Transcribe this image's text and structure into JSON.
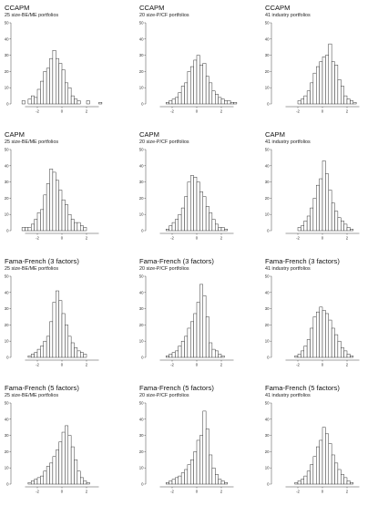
{
  "bar_color": "#ffffff",
  "bar_stroke": "#222222",
  "axis_color": "#444444",
  "chart_data": [
    {
      "type": "bar",
      "title": "CCAPM",
      "subtitle": "25 size-BE/ME portfolios",
      "ylim": [
        0,
        50
      ],
      "y_ticks": [
        0,
        10,
        20,
        30,
        40,
        50
      ],
      "xlim": [
        -4,
        4
      ],
      "x_ticks": [
        -2,
        0,
        2
      ],
      "bin_width": 0.25,
      "x_start": -3.5,
      "values": [
        0,
        2,
        0,
        3,
        5,
        4,
        9,
        14,
        20,
        22,
        28,
        33,
        28,
        25,
        21,
        13,
        10,
        5,
        3,
        2,
        0,
        0,
        2,
        0,
        0,
        0,
        1,
        0,
        0
      ]
    },
    {
      "type": "bar",
      "title": "CCAPM",
      "subtitle": "20 size-P/CF portfolios",
      "ylim": [
        0,
        50
      ],
      "y_ticks": [
        0,
        10,
        20,
        30,
        40,
        50
      ],
      "xlim": [
        -4,
        4
      ],
      "x_ticks": [
        -2,
        0,
        2
      ],
      "bin_width": 0.25,
      "x_start": -3.5,
      "values": [
        0,
        0,
        0,
        0,
        1,
        2,
        3,
        4,
        7,
        11,
        13,
        20,
        23,
        27,
        30,
        24,
        25,
        17,
        13,
        8,
        6,
        4,
        3,
        2,
        2,
        1,
        1,
        0,
        0
      ]
    },
    {
      "type": "bar",
      "title": "CCAPM",
      "subtitle": "41 industry portfolios",
      "ylim": [
        0,
        50
      ],
      "y_ticks": [
        0,
        10,
        20,
        30,
        40,
        50
      ],
      "xlim": [
        -4,
        4
      ],
      "x_ticks": [
        -2,
        0,
        2
      ],
      "bin_width": 0.25,
      "x_start": -3.5,
      "values": [
        0,
        0,
        0,
        0,
        0,
        0,
        2,
        3,
        5,
        8,
        13,
        19,
        23,
        26,
        29,
        30,
        37,
        26,
        24,
        15,
        11,
        5,
        3,
        2,
        1,
        0,
        0,
        0,
        0
      ]
    },
    {
      "type": "bar",
      "title": "CAPM",
      "subtitle": "25 size-BE/ME portfolios",
      "ylim": [
        0,
        50
      ],
      "y_ticks": [
        0,
        10,
        20,
        30,
        40,
        50
      ],
      "xlim": [
        -4,
        4
      ],
      "x_ticks": [
        -2,
        0,
        2
      ],
      "bin_width": 0.25,
      "x_start": -3.5,
      "values": [
        0,
        2,
        2,
        2,
        4,
        7,
        11,
        13,
        22,
        29,
        38,
        36,
        31,
        25,
        19,
        16,
        10,
        7,
        5,
        5,
        3,
        2,
        0,
        0,
        0,
        0,
        0,
        0,
        0
      ]
    },
    {
      "type": "bar",
      "title": "CAPM",
      "subtitle": "20 size-P/CF portfolios",
      "ylim": [
        0,
        50
      ],
      "y_ticks": [
        0,
        10,
        20,
        30,
        40,
        50
      ],
      "xlim": [
        -4,
        4
      ],
      "x_ticks": [
        -2,
        0,
        2
      ],
      "bin_width": 0.25,
      "x_start": -3.5,
      "values": [
        0,
        0,
        0,
        0,
        1,
        3,
        5,
        7,
        10,
        14,
        21,
        30,
        34,
        33,
        30,
        24,
        21,
        15,
        11,
        7,
        4,
        2,
        2,
        1,
        0,
        0,
        0,
        0,
        0
      ]
    },
    {
      "type": "bar",
      "title": "CAPM",
      "subtitle": "41 industry portfolios",
      "ylim": [
        0,
        50
      ],
      "y_ticks": [
        0,
        10,
        20,
        30,
        40,
        50
      ],
      "xlim": [
        -4,
        4
      ],
      "x_ticks": [
        -2,
        0,
        2
      ],
      "bin_width": 0.25,
      "x_start": -3.5,
      "values": [
        0,
        0,
        0,
        0,
        0,
        0,
        2,
        3,
        6,
        9,
        14,
        20,
        28,
        32,
        43,
        35,
        25,
        17,
        12,
        8,
        6,
        4,
        2,
        1,
        0,
        0,
        0,
        0,
        0
      ]
    },
    {
      "type": "bar",
      "title": "Fama-French (3 factors)",
      "subtitle": "25 size-BE/ME portfolios",
      "ylim": [
        0,
        50
      ],
      "y_ticks": [
        0,
        10,
        20,
        30,
        40,
        50
      ],
      "xlim": [
        -4,
        4
      ],
      "x_ticks": [
        -2,
        0,
        2
      ],
      "bin_width": 0.25,
      "x_start": -3.5,
      "values": [
        0,
        0,
        0,
        1,
        2,
        3,
        5,
        7,
        10,
        13,
        22,
        34,
        41,
        35,
        27,
        20,
        13,
        9,
        6,
        4,
        3,
        2,
        0,
        0,
        0,
        0,
        0,
        0,
        0
      ]
    },
    {
      "type": "bar",
      "title": "Fama-French (3 factors)",
      "subtitle": "20 size-P/CF portfolios",
      "ylim": [
        0,
        50
      ],
      "y_ticks": [
        0,
        10,
        20,
        30,
        40,
        50
      ],
      "xlim": [
        -4,
        4
      ],
      "x_ticks": [
        -2,
        0,
        2
      ],
      "bin_width": 0.25,
      "x_start": -3.5,
      "values": [
        0,
        0,
        0,
        0,
        1,
        2,
        3,
        4,
        7,
        10,
        13,
        18,
        22,
        27,
        34,
        45,
        38,
        25,
        9,
        5,
        4,
        2,
        1,
        0,
        0,
        0,
        0,
        0,
        0
      ]
    },
    {
      "type": "bar",
      "title": "Fama-French (3 factors)",
      "subtitle": "41 industry portfolios",
      "ylim": [
        0,
        50
      ],
      "y_ticks": [
        0,
        10,
        20,
        30,
        40,
        50
      ],
      "xlim": [
        -4,
        4
      ],
      "x_ticks": [
        -2,
        0,
        2
      ],
      "bin_width": 0.25,
      "x_start": -3.5,
      "values": [
        0,
        0,
        0,
        0,
        0,
        1,
        2,
        4,
        7,
        11,
        18,
        25,
        28,
        31,
        29,
        27,
        23,
        18,
        14,
        10,
        6,
        4,
        2,
        1,
        0,
        0,
        0,
        0,
        0
      ]
    },
    {
      "type": "bar",
      "title": "Fama-French (5 factors)",
      "subtitle": "25 size-BE/ME portfolios",
      "ylim": [
        0,
        50
      ],
      "y_ticks": [
        0,
        10,
        20,
        30,
        40,
        50
      ],
      "xlim": [
        -4,
        4
      ],
      "x_ticks": [
        -2,
        0,
        2
      ],
      "bin_width": 0.25,
      "x_start": -3.5,
      "values": [
        0,
        0,
        0,
        1,
        2,
        3,
        4,
        5,
        8,
        11,
        13,
        17,
        21,
        26,
        32,
        36,
        30,
        23,
        15,
        8,
        4,
        2,
        1,
        0,
        0,
        0,
        0,
        0,
        0
      ]
    },
    {
      "type": "bar",
      "title": "Fama-French (5 factors)",
      "subtitle": "20 size-P/CF portfolios",
      "ylim": [
        0,
        50
      ],
      "y_ticks": [
        0,
        10,
        20,
        30,
        40,
        50
      ],
      "xlim": [
        -4,
        4
      ],
      "x_ticks": [
        -2,
        0,
        2
      ],
      "bin_width": 0.25,
      "x_start": -3.5,
      "values": [
        0,
        0,
        0,
        0,
        1,
        2,
        3,
        4,
        5,
        7,
        9,
        12,
        15,
        20,
        27,
        30,
        45,
        34,
        18,
        10,
        6,
        3,
        2,
        1,
        0,
        0,
        0,
        0,
        0
      ]
    },
    {
      "type": "bar",
      "title": "Fama-French (5 factors)",
      "subtitle": "41 industry portfolios",
      "ylim": [
        0,
        50
      ],
      "y_ticks": [
        0,
        10,
        20,
        30,
        40,
        50
      ],
      "xlim": [
        -4,
        4
      ],
      "x_ticks": [
        -2,
        0,
        2
      ],
      "bin_width": 0.25,
      "x_start": -3.5,
      "values": [
        0,
        0,
        0,
        0,
        0,
        1,
        2,
        3,
        5,
        8,
        12,
        17,
        23,
        27,
        35,
        31,
        25,
        18,
        13,
        9,
        6,
        4,
        2,
        1,
        0,
        0,
        0,
        0,
        0
      ]
    }
  ]
}
